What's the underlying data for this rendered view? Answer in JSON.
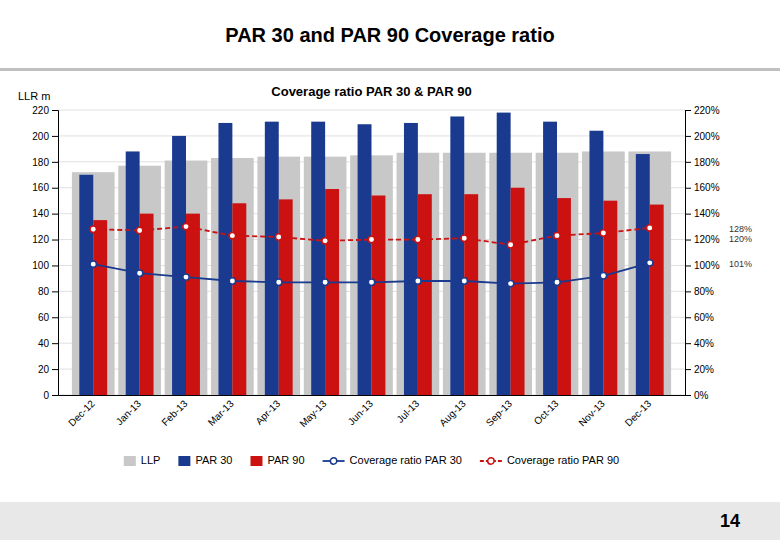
{
  "page_title": "PAR 30 and PAR 90 Coverage ratio",
  "page_number": "14",
  "chart_data": {
    "type": "bar",
    "title": "Coverage ratio PAR 30 & PAR 90",
    "ylabel": "LLR m",
    "categories": [
      "Dec-12",
      "Jan-13",
      "Feb-13",
      "Mar-13",
      "Apr-13",
      "May-13",
      "Jun-13",
      "Jul-13",
      "Aug-13",
      "Sep-13",
      "Oct-13",
      "Nov-13",
      "Dec-13"
    ],
    "series": [
      {
        "name": "LLP",
        "type": "bar",
        "color": "#c8c8c8",
        "values": [
          172,
          177,
          181,
          183,
          184,
          184,
          185,
          187,
          187,
          187,
          187,
          188,
          188
        ]
      },
      {
        "name": "PAR 30",
        "type": "bar",
        "color": "#1a3a8f",
        "values": [
          170,
          188,
          200,
          210,
          211,
          211,
          209,
          210,
          215,
          218,
          211,
          204,
          186
        ]
      },
      {
        "name": "PAR 90",
        "type": "bar",
        "color": "#cc1111",
        "values": [
          135,
          140,
          140,
          148,
          151,
          159,
          154,
          155,
          155,
          160,
          152,
          150,
          147
        ]
      },
      {
        "name": "Coverage ratio PAR 30",
        "type": "line",
        "axis": "y2",
        "color": "#1a3a8f",
        "marker": "circle",
        "line_style": "solid",
        "values": [
          101,
          94,
          91,
          88,
          87,
          87,
          87,
          88,
          88,
          86,
          87,
          92,
          102
        ]
      },
      {
        "name": "Coverage ratio PAR 90",
        "type": "line",
        "axis": "y2",
        "color": "#cc1111",
        "marker": "circle",
        "line_style": "dashed",
        "values": [
          128,
          127,
          130,
          123,
          122,
          119,
          120,
          120,
          121,
          116,
          123,
          125,
          129
        ]
      }
    ],
    "ylim": [
      0,
      220
    ],
    "yticks": [
      0,
      20,
      40,
      60,
      80,
      100,
      120,
      140,
      160,
      180,
      200,
      220
    ],
    "y2lim": [
      0,
      220
    ],
    "y2ticks": [
      {
        "value": 0,
        "label": "0%"
      },
      {
        "value": 20,
        "label": "20%"
      },
      {
        "value": 40,
        "label": "40%"
      },
      {
        "value": 60,
        "label": "60%"
      },
      {
        "value": 80,
        "label": "80%"
      },
      {
        "value": 100,
        "label": "100%"
      },
      {
        "value": 120,
        "label": "120%"
      },
      {
        "value": 140,
        "label": "140%"
      },
      {
        "value": 160,
        "label": "160%"
      },
      {
        "value": 180,
        "label": "180%"
      },
      {
        "value": 200,
        "label": "200%"
      },
      {
        "value": 220,
        "label": "220%"
      }
    ],
    "annotations": [
      {
        "text": "101%",
        "value": 101,
        "axis": "y2"
      },
      {
        "text": "120%",
        "value": 120,
        "axis": "y2"
      },
      {
        "text": "128%",
        "value": 128,
        "axis": "y2"
      }
    ],
    "grid": true,
    "legend": "bottom"
  }
}
